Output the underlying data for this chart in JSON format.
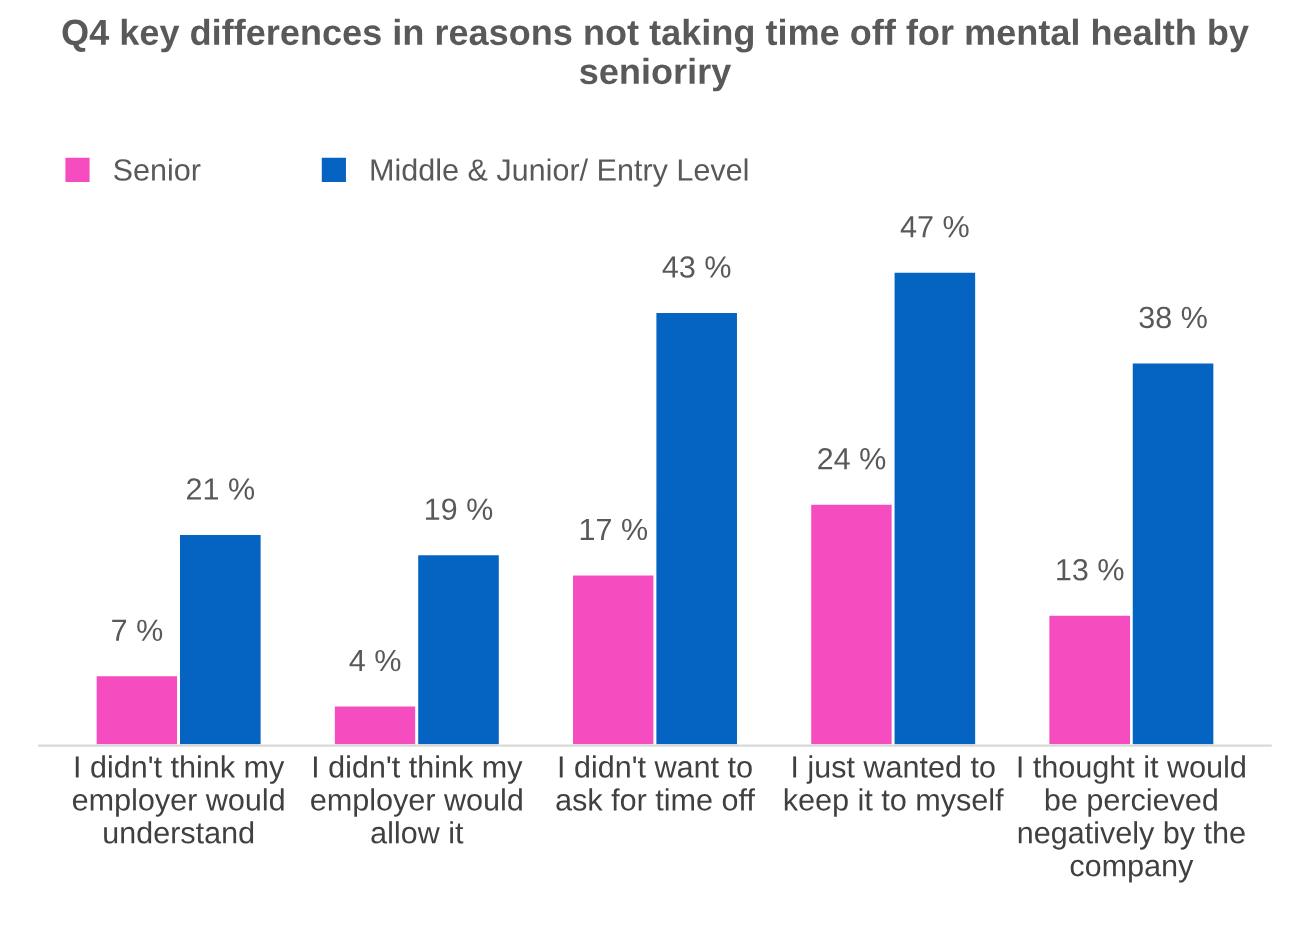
{
  "chart_data": {
    "type": "bar",
    "title": "Q4 key differences in reasons not taking time off for mental health by senioriry",
    "categories": [
      "I didn't think my employer would understand",
      "I didn't think my employer would allow it",
      "I didn't want to ask for time off",
      "I just wanted to keep it to myself",
      "I thought it would be percieved negatively by the company"
    ],
    "series": [
      {
        "name": "Senior",
        "color": "#f54cbf",
        "values": [
          7,
          4,
          17,
          24,
          13
        ],
        "value_labels": [
          "7 %",
          "4 %",
          "17 %",
          "24 %",
          "13 %"
        ]
      },
      {
        "name": "Middle & Junior/ Entry Level",
        "color": "#0563c1",
        "values": [
          21,
          19,
          43,
          47,
          38
        ],
        "value_labels": [
          "21 %",
          "19 %",
          "43 %",
          "47 %",
          "38 %"
        ]
      }
    ],
    "legend": "top left",
    "grid": false
  }
}
